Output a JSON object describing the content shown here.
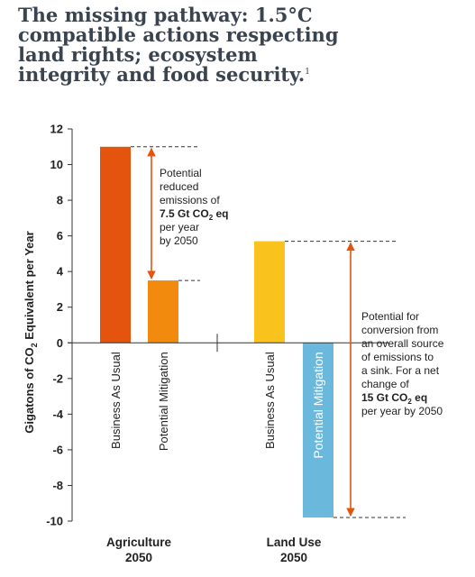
{
  "header": {
    "title_lines": [
      "The missing pathway: 1.5°C",
      "compatible actions respecting",
      "land rights; ecosystem",
      "integrity and food security."
    ],
    "title_footnote": "1"
  },
  "chart_data": {
    "type": "bar",
    "title": "The missing pathway: 1.5°C compatible actions respecting land rights; ecosystem integrity and food security.",
    "ylabel": "Gigatons of CO2 Equivalent per Year",
    "ylim": [
      -10,
      12
    ],
    "yticks": [
      12,
      10,
      8,
      6,
      4,
      2,
      0,
      -2,
      -4,
      -6,
      -8,
      -10
    ],
    "groups": [
      {
        "name_lines": [
          "Agriculture",
          "2050"
        ],
        "bars": [
          {
            "label": "Business As Usual",
            "value": 11,
            "color": "#e5540e"
          },
          {
            "label": "Potential Mitigation",
            "value": 3.5,
            "color": "#f18a0d"
          }
        ],
        "annotation": {
          "from": 11,
          "to": 3.5,
          "lines": [
            [
              {
                "t": "Potential",
                "b": false
              }
            ],
            [
              {
                "t": "reduced",
                "b": false
              }
            ],
            [
              {
                "t": "emissions of",
                "b": false
              }
            ],
            [
              {
                "t": "7.5 Gt CO",
                "b": true
              },
              {
                "t": "2",
                "b": true,
                "sub": true
              },
              {
                "t": " eq",
                "b": true
              }
            ],
            [
              {
                "t": "per year",
                "b": false
              }
            ],
            [
              {
                "t": "by 2050",
                "b": false
              }
            ]
          ]
        }
      },
      {
        "name_lines": [
          "Land Use",
          "2050"
        ],
        "bars": [
          {
            "label": "Business As Usual",
            "value": 5.7,
            "color": "#f9c21d"
          },
          {
            "label": "Potential Mitigation",
            "value": -9.8,
            "color": "#6ab8dc"
          }
        ],
        "annotation": {
          "from": 5.7,
          "to": -9.8,
          "lines": [
            [
              {
                "t": "Potential for",
                "b": false
              }
            ],
            [
              {
                "t": "conversion from",
                "b": false
              }
            ],
            [
              {
                "t": "an overall source",
                "b": false
              }
            ],
            [
              {
                "t": "of emissions to",
                "b": false
              }
            ],
            [
              {
                "t": "a sink. For a net",
                "b": false
              }
            ],
            [
              {
                "t": "change of",
                "b": false
              }
            ],
            [
              {
                "t": "15 Gt CO",
                "b": true
              },
              {
                "t": "2",
                "b": true,
                "sub": true
              },
              {
                "t": " eq",
                "b": true
              }
            ],
            [
              {
                "t": "per year by 2050",
                "b": false
              }
            ]
          ]
        }
      }
    ],
    "arrow_color": "#e5540e",
    "grid": false
  }
}
